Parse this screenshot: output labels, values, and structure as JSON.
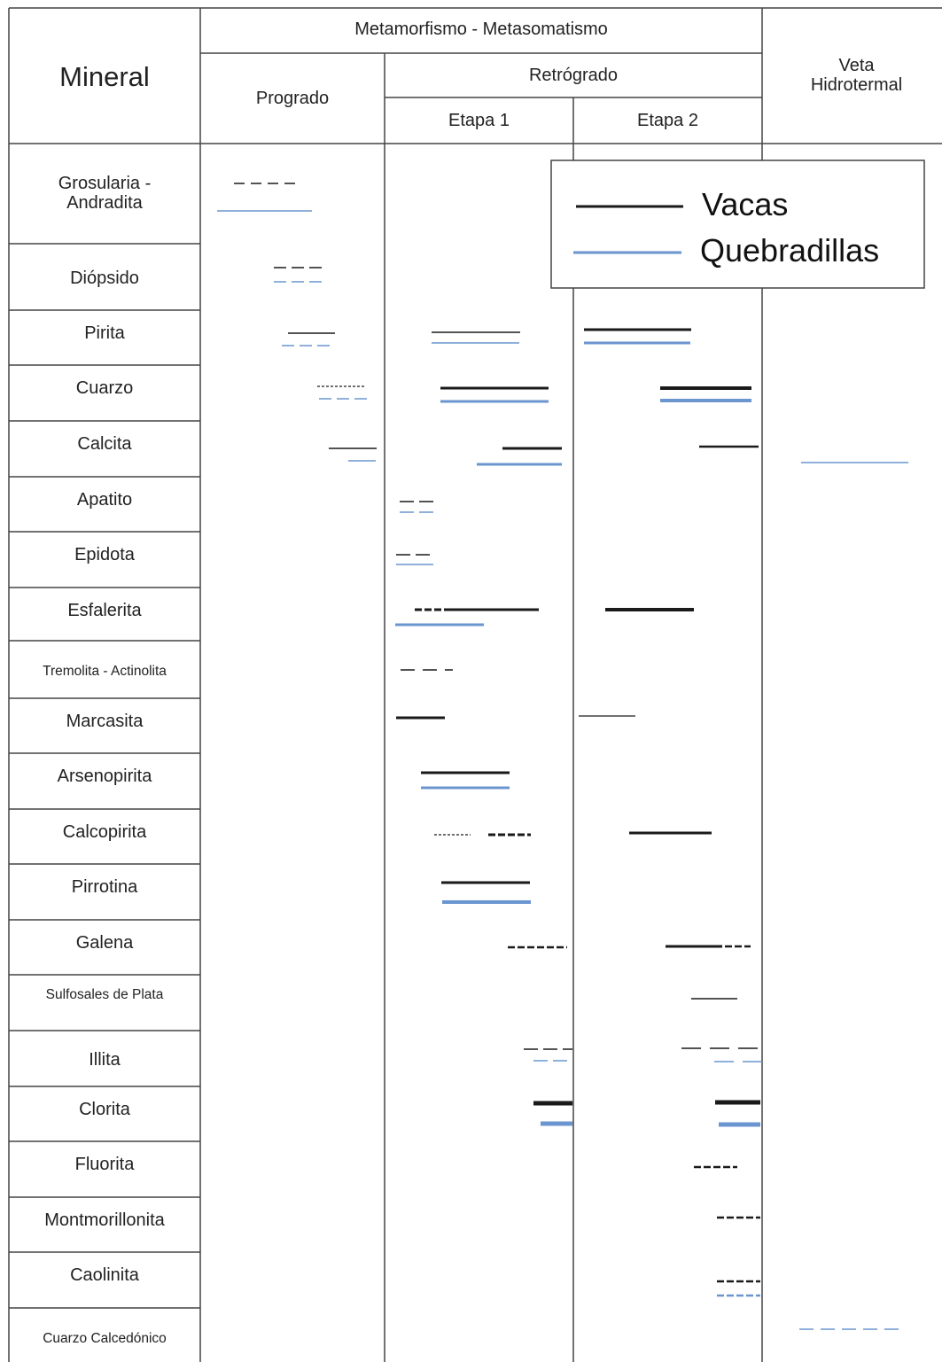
{
  "header": {
    "mineral": "Mineral",
    "metamorfismo": "Metamorfismo - Metasomatismo",
    "progrado": "Progrado",
    "retrogrado": "Retrógrado",
    "etapa1": "Etapa 1",
    "etapa2": "Etapa 2",
    "veta_line1": "Veta",
    "veta_line2": "Hidrotermal"
  },
  "legend": {
    "vacas": "Vacas",
    "quebradillas": "Quebradillas",
    "vacas_color": "#1a1a1a",
    "quebradillas_color": "#6a95cf"
  },
  "minerals": [
    "Grosularia - Andradita",
    "Diópsido",
    "Pirita",
    "Cuarzo",
    "Calcita",
    "Apatito",
    "Epidota",
    "Esfalerita",
    "Tremolita - Actinolita",
    "Marcasita",
    "Arsenopirita",
    "Calcopirita",
    "Pirrotina",
    "Galena",
    "Sulfosales de Plata",
    "Illita",
    "Clorita",
    "Fluorita",
    "Montmorillonita",
    "Caolinita",
    "Cuarzo Calcedónico"
  ]
}
